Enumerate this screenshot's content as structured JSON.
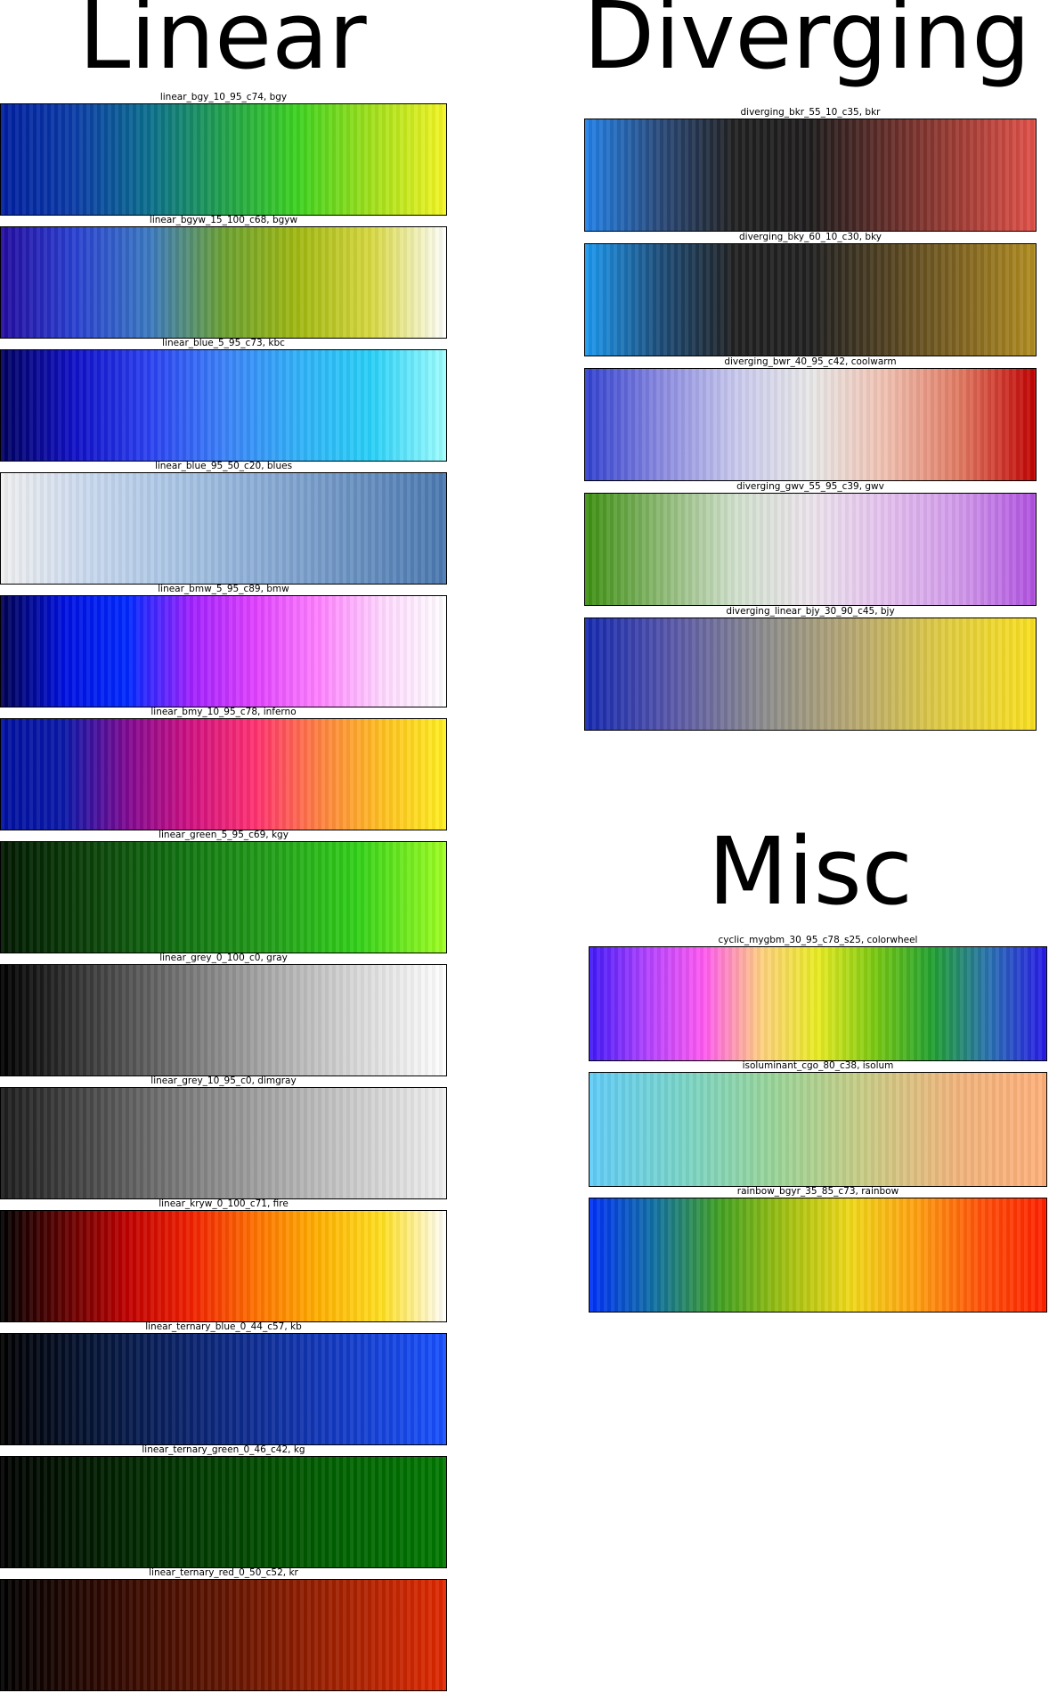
{
  "headings": {
    "linear": "Linear",
    "diverging": "Diverging",
    "misc": "Misc"
  },
  "linear": [
    {
      "name": "linear_bgy_10_95_c74,  bgy",
      "colors": [
        "#001ea0",
        "#0a3ca6",
        "#0a6e8c",
        "#1fa04a",
        "#3cd21e",
        "#a0e01a",
        "#f5f523"
      ]
    },
    {
      "name": "linear_bgyw_15_100_c68,  bgyw",
      "colors": [
        "#230ba0",
        "#2840d0",
        "#3a78c0",
        "#6aa030",
        "#a0b810",
        "#d8d840",
        "#ffffff"
      ]
    },
    {
      "name": "linear_blue_5_95_c73,  kbc",
      "colors": [
        "#000060",
        "#1010c8",
        "#2a40f0",
        "#3a80f8",
        "#30b0f8",
        "#28d0f8",
        "#a0ffff"
      ]
    },
    {
      "name": "linear_blue_95_50_c20,  blues",
      "colors": [
        "#f0f0f0",
        "#c8d8ee",
        "#a8c4e4",
        "#88aad4",
        "#6890c0",
        "#4a78b0"
      ]
    },
    {
      "name": "linear_bmw_5_95_c89,  bmw",
      "colors": [
        "#000050",
        "#0010e0",
        "#0028ff",
        "#a020ff",
        "#e040ff",
        "#ff80ff",
        "#ffd8ff",
        "#ffffff"
      ]
    },
    {
      "name": "linear_bmy_10_95_c78,  inferno",
      "colors": [
        "#0010a0",
        "#0a18a8",
        "#800890",
        "#d01080",
        "#ff3070",
        "#ff8040",
        "#ffc020",
        "#fff020"
      ]
    },
    {
      "name": "linear_green_5_95_c69,  kgy",
      "colors": [
        "#001800",
        "#0a4008",
        "#107010",
        "#209c18",
        "#30d018",
        "#a0ff20"
      ]
    },
    {
      "name": "linear_grey_0_100_c0,  gray",
      "colors": [
        "#000000",
        "#3a3a3a",
        "#707070",
        "#a8a8a8",
        "#d8d8d8",
        "#ffffff"
      ]
    },
    {
      "name": "linear_grey_10_95_c0,  dimgray",
      "colors": [
        "#1c1c1c",
        "#484848",
        "#787878",
        "#a4a4a4",
        "#cccccc",
        "#f0f0f0"
      ]
    },
    {
      "name": "linear_kryw_0_100_c71,  fire",
      "colors": [
        "#000000",
        "#600000",
        "#c00000",
        "#f02000",
        "#ff7000",
        "#ffb000",
        "#ffe020",
        "#ffffff"
      ]
    },
    {
      "name": "linear_ternary_blue_0_44_c57,  kb",
      "colors": [
        "#000000",
        "#061840",
        "#0c2880",
        "#1238c0",
        "#1850ff"
      ]
    },
    {
      "name": "linear_ternary_green_0_46_c42,  kg",
      "colors": [
        "#000000",
        "#002000",
        "#004000",
        "#006000",
        "#007800"
      ]
    },
    {
      "name": "linear_ternary_red_0_50_c52,  kr",
      "colors": [
        "#000000",
        "#300800",
        "#601400",
        "#a02000",
        "#e02800"
      ]
    }
  ],
  "diverging": [
    {
      "name": "diverging_bkr_55_10_c35,  bkr",
      "colors": [
        "#2080e8",
        "#284878",
        "#202020",
        "#1e1c1c",
        "#602c28",
        "#a03c34",
        "#e05048"
      ]
    },
    {
      "name": "diverging_bky_60_10_c30,  bky",
      "colors": [
        "#1a98f0",
        "#1c4c78",
        "#202020",
        "#202020",
        "#504020",
        "#806420",
        "#b08c20"
      ]
    },
    {
      "name": "diverging_bwr_40_95_c42,  coolwarm",
      "colors": [
        "#3040d0",
        "#8888e0",
        "#c8c8ee",
        "#e8e8e8",
        "#f0c0b0",
        "#e07860",
        "#c00000"
      ]
    },
    {
      "name": "diverging_gwv_55_95_c39,  gwv",
      "colors": [
        "#3c9010",
        "#8ab870",
        "#d0e0cc",
        "#ece4ec",
        "#e4c0ee",
        "#d098ea",
        "#b050e0"
      ]
    },
    {
      "name": "diverging_linear_bjy_30_90_c45,  bjy",
      "colors": [
        "#1428b0",
        "#5a58a8",
        "#8c8c8c",
        "#b8a870",
        "#e0cc40",
        "#fae020"
      ]
    }
  ],
  "misc": [
    {
      "name": "cyclic_mygbm_30_95_c78_s25,  colorwheel",
      "colors": [
        "#4018f8",
        "#b040ff",
        "#ff58f0",
        "#ffd080",
        "#e8ec20",
        "#78c810",
        "#20a030",
        "#2870b0",
        "#2818e8"
      ]
    },
    {
      "name": "isoluminant_cgo_80_c38,  isolum",
      "colors": [
        "#60ccf8",
        "#78d4c8",
        "#98d498",
        "#c8cc84",
        "#f0b47c",
        "#ffb07a"
      ]
    },
    {
      "name": "rainbow_bgyr_35_85_c73,  rainbow",
      "colors": [
        "#0030f8",
        "#1070a0",
        "#40a020",
        "#a0c010",
        "#f0d818",
        "#ffa010",
        "#ff5008",
        "#ff2000"
      ]
    }
  ]
}
